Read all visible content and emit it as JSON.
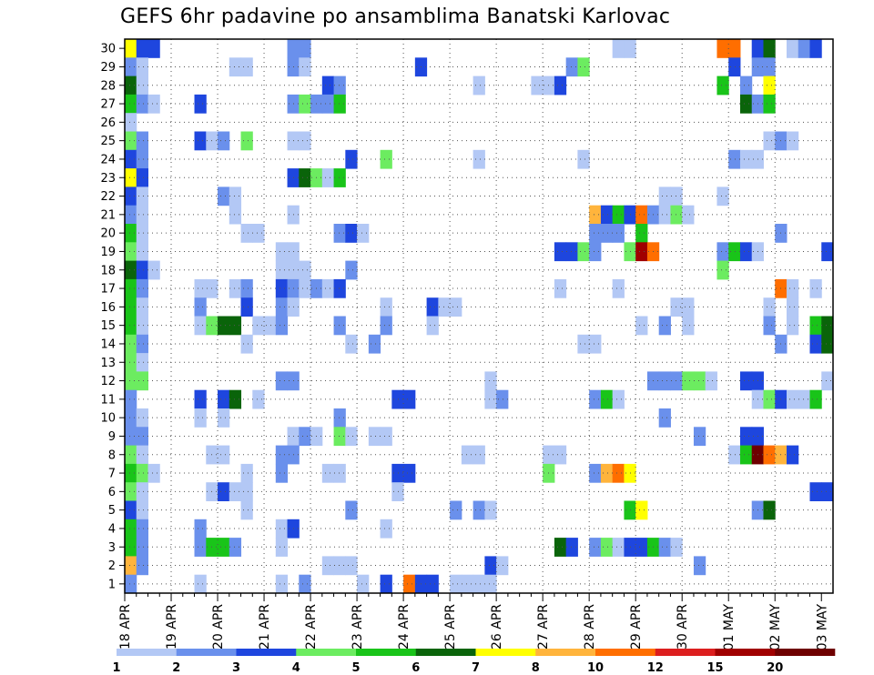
{
  "title": "GEFS 6hr padavine po ansamblima Banatski Karlovac",
  "chart_data": {
    "type": "heatmap",
    "title": "GEFS 6hr padavine po ansamblima Banatski Karlovac",
    "xlabel": "",
    "ylabel": "",
    "x_tick_labels": [
      "18 APR",
      "19 APR",
      "20 APR",
      "21 APR",
      "22 APR",
      "23 APR",
      "24 APR",
      "25 APR",
      "26 APR",
      "27 APR",
      "28 APR",
      "29 APR",
      "30 APR",
      "01 MAY",
      "02 MAY",
      "03 MAY"
    ],
    "y_tick_labels": [
      1,
      2,
      3,
      4,
      5,
      6,
      7,
      8,
      9,
      10,
      11,
      12,
      13,
      14,
      15,
      16,
      17,
      18,
      19,
      20,
      21,
      22,
      23,
      24,
      25,
      26,
      27,
      28,
      29,
      30
    ],
    "time_steps_per_day": 4,
    "num_time_steps": 61,
    "num_members": 30,
    "grid": true,
    "colorbar": {
      "thresholds": [
        1,
        2,
        3,
        4,
        5,
        6,
        7,
        8,
        10,
        12,
        15,
        20
      ],
      "colors": [
        "#b3c8f5",
        "#6a90ec",
        "#1e46de",
        "#6cec60",
        "#19c419",
        "#0a640a",
        "#ffff00",
        "#ffb43c",
        "#ff6e00",
        "#dc1e1e",
        "#a00000",
        "#6e0000"
      ],
      "labels": [
        "1",
        "2",
        "3",
        "4",
        "5",
        "6",
        "7",
        "8",
        "10",
        "12",
        "15",
        "20"
      ]
    },
    "cells": [
      [
        30,
        0,
        7
      ],
      [
        30,
        1,
        3
      ],
      [
        30,
        2,
        3
      ],
      [
        30,
        14,
        2
      ],
      [
        30,
        15,
        2
      ],
      [
        30,
        42,
        1
      ],
      [
        30,
        43,
        1
      ],
      [
        30,
        51,
        9
      ],
      [
        30,
        52,
        9
      ],
      [
        30,
        54,
        3
      ],
      [
        30,
        55,
        6
      ],
      [
        30,
        57,
        1
      ],
      [
        30,
        58,
        2
      ],
      [
        30,
        59,
        3
      ],
      [
        29,
        0,
        2
      ],
      [
        29,
        1,
        1
      ],
      [
        29,
        9,
        1
      ],
      [
        29,
        10,
        1
      ],
      [
        29,
        14,
        2
      ],
      [
        29,
        15,
        1
      ],
      [
        29,
        25,
        3
      ],
      [
        29,
        38,
        2
      ],
      [
        29,
        39,
        4
      ],
      [
        29,
        52,
        3
      ],
      [
        29,
        54,
        2
      ],
      [
        29,
        55,
        2
      ],
      [
        28,
        0,
        6
      ],
      [
        28,
        1,
        1
      ],
      [
        28,
        17,
        3
      ],
      [
        28,
        18,
        2
      ],
      [
        28,
        30,
        1
      ],
      [
        28,
        35,
        1
      ],
      [
        28,
        36,
        1
      ],
      [
        28,
        37,
        3
      ],
      [
        28,
        51,
        5
      ],
      [
        28,
        53,
        2
      ],
      [
        28,
        55,
        7
      ],
      [
        27,
        0,
        5
      ],
      [
        27,
        1,
        2
      ],
      [
        27,
        2,
        1
      ],
      [
        27,
        6,
        3
      ],
      [
        27,
        14,
        2
      ],
      [
        27,
        15,
        4
      ],
      [
        27,
        16,
        2
      ],
      [
        27,
        17,
        2
      ],
      [
        27,
        18,
        5
      ],
      [
        27,
        53,
        6
      ],
      [
        27,
        54,
        2
      ],
      [
        27,
        55,
        5
      ],
      [
        26,
        0,
        1
      ],
      [
        25,
        0,
        4
      ],
      [
        25,
        1,
        2
      ],
      [
        25,
        6,
        3
      ],
      [
        25,
        7,
        1
      ],
      [
        25,
        8,
        2
      ],
      [
        25,
        10,
        4
      ],
      [
        25,
        14,
        1
      ],
      [
        25,
        15,
        1
      ],
      [
        25,
        55,
        1
      ],
      [
        25,
        56,
        2
      ],
      [
        25,
        57,
        1
      ],
      [
        24,
        0,
        3
      ],
      [
        24,
        1,
        2
      ],
      [
        24,
        19,
        3
      ],
      [
        24,
        22,
        4
      ],
      [
        24,
        30,
        1
      ],
      [
        24,
        39,
        1
      ],
      [
        24,
        52,
        2
      ],
      [
        24,
        53,
        1
      ],
      [
        24,
        54,
        1
      ],
      [
        23,
        0,
        7
      ],
      [
        23,
        1,
        3
      ],
      [
        23,
        14,
        3
      ],
      [
        23,
        15,
        6
      ],
      [
        23,
        16,
        4
      ],
      [
        23,
        17,
        1
      ],
      [
        23,
        18,
        5
      ],
      [
        22,
        0,
        3
      ],
      [
        22,
        1,
        1
      ],
      [
        22,
        8,
        2
      ],
      [
        22,
        9,
        1
      ],
      [
        22,
        46,
        1
      ],
      [
        22,
        47,
        1
      ],
      [
        22,
        51,
        1
      ],
      [
        21,
        0,
        2
      ],
      [
        21,
        1,
        1
      ],
      [
        21,
        9,
        1
      ],
      [
        21,
        14,
        1
      ],
      [
        21,
        40,
        8
      ],
      [
        21,
        41,
        3
      ],
      [
        21,
        42,
        5
      ],
      [
        21,
        43,
        3
      ],
      [
        21,
        44,
        9
      ],
      [
        21,
        45,
        2
      ],
      [
        21,
        46,
        1
      ],
      [
        21,
        47,
        4
      ],
      [
        21,
        48,
        1
      ],
      [
        20,
        0,
        5
      ],
      [
        20,
        1,
        1
      ],
      [
        20,
        10,
        1
      ],
      [
        20,
        11,
        1
      ],
      [
        20,
        18,
        2
      ],
      [
        20,
        19,
        3
      ],
      [
        20,
        20,
        1
      ],
      [
        20,
        40,
        2
      ],
      [
        20,
        41,
        2
      ],
      [
        20,
        42,
        2
      ],
      [
        20,
        44,
        5
      ],
      [
        20,
        56,
        2
      ],
      [
        19,
        0,
        4
      ],
      [
        19,
        1,
        1
      ],
      [
        19,
        13,
        1
      ],
      [
        19,
        14,
        1
      ],
      [
        19,
        37,
        3
      ],
      [
        19,
        38,
        3
      ],
      [
        19,
        39,
        4
      ],
      [
        19,
        40,
        2
      ],
      [
        19,
        43,
        4
      ],
      [
        19,
        44,
        11
      ],
      [
        19,
        45,
        9
      ],
      [
        19,
        51,
        2
      ],
      [
        19,
        52,
        5
      ],
      [
        19,
        53,
        3
      ],
      [
        19,
        54,
        1
      ],
      [
        19,
        60,
        3
      ],
      [
        18,
        0,
        6
      ],
      [
        18,
        1,
        3
      ],
      [
        18,
        2,
        1
      ],
      [
        18,
        13,
        1
      ],
      [
        18,
        14,
        1
      ],
      [
        18,
        15,
        1
      ],
      [
        18,
        19,
        2
      ],
      [
        18,
        51,
        4
      ],
      [
        17,
        0,
        5
      ],
      [
        17,
        1,
        2
      ],
      [
        17,
        6,
        1
      ],
      [
        17,
        7,
        1
      ],
      [
        17,
        9,
        1
      ],
      [
        17,
        10,
        2
      ],
      [
        17,
        13,
        3
      ],
      [
        17,
        14,
        2
      ],
      [
        17,
        15,
        1
      ],
      [
        17,
        16,
        2
      ],
      [
        17,
        17,
        1
      ],
      [
        17,
        18,
        3
      ],
      [
        17,
        37,
        1
      ],
      [
        17,
        42,
        1
      ],
      [
        17,
        56,
        9
      ],
      [
        17,
        57,
        1
      ],
      [
        17,
        59,
        1
      ],
      [
        16,
        0,
        5
      ],
      [
        16,
        1,
        1
      ],
      [
        16,
        6,
        2
      ],
      [
        16,
        10,
        3
      ],
      [
        16,
        13,
        2
      ],
      [
        16,
        14,
        1
      ],
      [
        16,
        22,
        1
      ],
      [
        16,
        26,
        3
      ],
      [
        16,
        27,
        1
      ],
      [
        16,
        28,
        1
      ],
      [
        16,
        47,
        1
      ],
      [
        16,
        48,
        1
      ],
      [
        16,
        55,
        1
      ],
      [
        16,
        57,
        1
      ],
      [
        15,
        0,
        5
      ],
      [
        15,
        1,
        1
      ],
      [
        15,
        6,
        1
      ],
      [
        15,
        7,
        4
      ],
      [
        15,
        8,
        6
      ],
      [
        15,
        9,
        6
      ],
      [
        15,
        11,
        1
      ],
      [
        15,
        12,
        1
      ],
      [
        15,
        13,
        2
      ],
      [
        15,
        18,
        2
      ],
      [
        15,
        22,
        2
      ],
      [
        15,
        26,
        1
      ],
      [
        15,
        44,
        1
      ],
      [
        15,
        46,
        2
      ],
      [
        15,
        48,
        1
      ],
      [
        15,
        55,
        2
      ],
      [
        15,
        57,
        1
      ],
      [
        15,
        59,
        5
      ],
      [
        15,
        60,
        6
      ],
      [
        14,
        0,
        4
      ],
      [
        14,
        1,
        2
      ],
      [
        14,
        10,
        1
      ],
      [
        14,
        19,
        1
      ],
      [
        14,
        21,
        2
      ],
      [
        14,
        39,
        1
      ],
      [
        14,
        40,
        1
      ],
      [
        14,
        56,
        2
      ],
      [
        14,
        59,
        3
      ],
      [
        14,
        60,
        6
      ],
      [
        13,
        0,
        4
      ],
      [
        13,
        1,
        1
      ],
      [
        12,
        0,
        4
      ],
      [
        12,
        1,
        4
      ],
      [
        12,
        13,
        2
      ],
      [
        12,
        14,
        2
      ],
      [
        12,
        31,
        1
      ],
      [
        12,
        45,
        2
      ],
      [
        12,
        46,
        2
      ],
      [
        12,
        47,
        2
      ],
      [
        12,
        48,
        4
      ],
      [
        12,
        49,
        4
      ],
      [
        12,
        50,
        1
      ],
      [
        12,
        53,
        3
      ],
      [
        12,
        54,
        3
      ],
      [
        12,
        60,
        1
      ],
      [
        11,
        0,
        2
      ],
      [
        11,
        6,
        3
      ],
      [
        11,
        8,
        3
      ],
      [
        11,
        9,
        6
      ],
      [
        11,
        11,
        1
      ],
      [
        11,
        23,
        3
      ],
      [
        11,
        24,
        3
      ],
      [
        11,
        31,
        1
      ],
      [
        11,
        32,
        2
      ],
      [
        11,
        40,
        2
      ],
      [
        11,
        41,
        5
      ],
      [
        11,
        42,
        1
      ],
      [
        11,
        54,
        1
      ],
      [
        11,
        55,
        4
      ],
      [
        11,
        56,
        3
      ],
      [
        11,
        57,
        1
      ],
      [
        11,
        58,
        1
      ],
      [
        11,
        59,
        5
      ],
      [
        10,
        0,
        2
      ],
      [
        10,
        1,
        1
      ],
      [
        10,
        6,
        1
      ],
      [
        10,
        8,
        1
      ],
      [
        10,
        18,
        2
      ],
      [
        10,
        46,
        2
      ],
      [
        9,
        0,
        2
      ],
      [
        9,
        1,
        2
      ],
      [
        9,
        14,
        1
      ],
      [
        9,
        15,
        2
      ],
      [
        9,
        16,
        1
      ],
      [
        9,
        18,
        4
      ],
      [
        9,
        19,
        1
      ],
      [
        9,
        21,
        1
      ],
      [
        9,
        22,
        1
      ],
      [
        9,
        49,
        2
      ],
      [
        9,
        53,
        3
      ],
      [
        9,
        54,
        3
      ],
      [
        8,
        0,
        4
      ],
      [
        8,
        1,
        1
      ],
      [
        8,
        7,
        1
      ],
      [
        8,
        8,
        1
      ],
      [
        8,
        13,
        2
      ],
      [
        8,
        14,
        2
      ],
      [
        8,
        29,
        1
      ],
      [
        8,
        30,
        1
      ],
      [
        8,
        36,
        1
      ],
      [
        8,
        37,
        1
      ],
      [
        8,
        52,
        1
      ],
      [
        8,
        53,
        5
      ],
      [
        8,
        54,
        12
      ],
      [
        8,
        55,
        9
      ],
      [
        8,
        56,
        8
      ],
      [
        8,
        57,
        3
      ],
      [
        7,
        0,
        5
      ],
      [
        7,
        1,
        4
      ],
      [
        7,
        2,
        1
      ],
      [
        7,
        10,
        1
      ],
      [
        7,
        13,
        2
      ],
      [
        7,
        17,
        1
      ],
      [
        7,
        18,
        1
      ],
      [
        7,
        23,
        3
      ],
      [
        7,
        24,
        3
      ],
      [
        7,
        36,
        4
      ],
      [
        7,
        40,
        2
      ],
      [
        7,
        41,
        8
      ],
      [
        7,
        42,
        9
      ],
      [
        7,
        43,
        7
      ],
      [
        6,
        0,
        4
      ],
      [
        6,
        1,
        1
      ],
      [
        6,
        7,
        1
      ],
      [
        6,
        8,
        3
      ],
      [
        6,
        9,
        1
      ],
      [
        6,
        10,
        1
      ],
      [
        6,
        23,
        1
      ],
      [
        6,
        59,
        3
      ],
      [
        6,
        60,
        3
      ],
      [
        5,
        0,
        3
      ],
      [
        5,
        1,
        1
      ],
      [
        5,
        10,
        1
      ],
      [
        5,
        19,
        2
      ],
      [
        5,
        28,
        2
      ],
      [
        5,
        30,
        2
      ],
      [
        5,
        31,
        1
      ],
      [
        5,
        43,
        5
      ],
      [
        5,
        44,
        7
      ],
      [
        5,
        54,
        2
      ],
      [
        5,
        55,
        6
      ],
      [
        4,
        0,
        5
      ],
      [
        4,
        1,
        2
      ],
      [
        4,
        6,
        2
      ],
      [
        4,
        13,
        1
      ],
      [
        4,
        14,
        3
      ],
      [
        4,
        22,
        1
      ],
      [
        3,
        0,
        5
      ],
      [
        3,
        1,
        2
      ],
      [
        3,
        6,
        2
      ],
      [
        3,
        7,
        5
      ],
      [
        3,
        8,
        5
      ],
      [
        3,
        9,
        2
      ],
      [
        3,
        13,
        1
      ],
      [
        3,
        37,
        6
      ],
      [
        3,
        38,
        3
      ],
      [
        3,
        40,
        2
      ],
      [
        3,
        41,
        4
      ],
      [
        3,
        42,
        1
      ],
      [
        3,
        43,
        3
      ],
      [
        3,
        44,
        3
      ],
      [
        3,
        45,
        5
      ],
      [
        3,
        46,
        2
      ],
      [
        3,
        47,
        1
      ],
      [
        2,
        0,
        8
      ],
      [
        2,
        1,
        2
      ],
      [
        2,
        17,
        1
      ],
      [
        2,
        18,
        1
      ],
      [
        2,
        19,
        1
      ],
      [
        2,
        31,
        3
      ],
      [
        2,
        32,
        1
      ],
      [
        2,
        49,
        2
      ],
      [
        1,
        0,
        2
      ],
      [
        1,
        6,
        1
      ],
      [
        1,
        13,
        1
      ],
      [
        1,
        15,
        2
      ],
      [
        1,
        20,
        1
      ],
      [
        1,
        22,
        3
      ],
      [
        1,
        24,
        9
      ],
      [
        1,
        25,
        3
      ],
      [
        1,
        26,
        3
      ],
      [
        1,
        28,
        1
      ],
      [
        1,
        29,
        1
      ],
      [
        1,
        30,
        1
      ],
      [
        1,
        31,
        1
      ]
    ]
  }
}
